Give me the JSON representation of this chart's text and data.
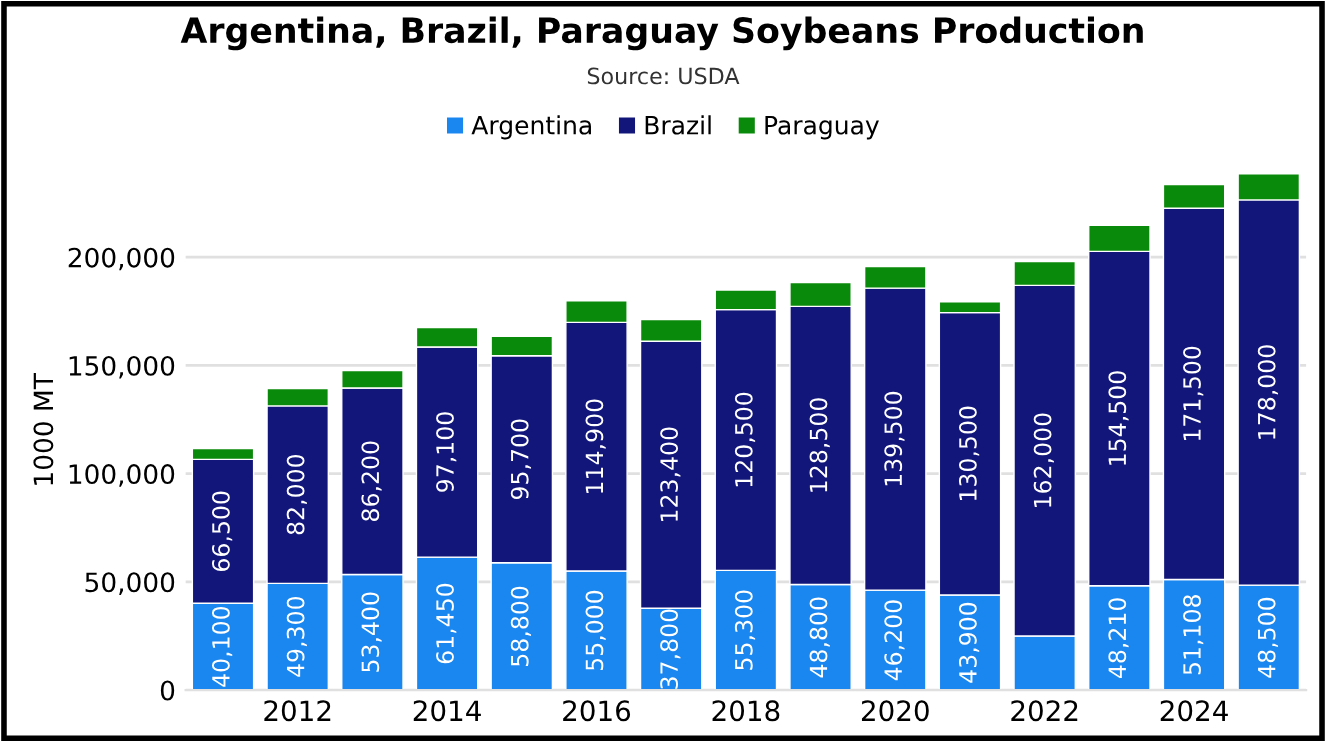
{
  "chart_data": {
    "type": "bar",
    "title": "Argentina, Brazil, Paraguay Soybeans Production",
    "subtitle": "Source: USDA",
    "ylabel": "1000 MT",
    "categories": [
      null,
      "2012",
      null,
      "2014",
      null,
      "2016",
      null,
      "2018",
      null,
      "2020",
      null,
      "2022",
      null,
      "2024",
      null
    ],
    "stacked": true,
    "series": [
      {
        "name": "Argentina",
        "color": "#1a86f0",
        "values": [
          40100,
          49300,
          53400,
          61450,
          58800,
          55000,
          37800,
          55300,
          48800,
          46200,
          43900,
          25000,
          48210,
          51108,
          48500
        ],
        "value_labels": [
          "40,100",
          "49,300",
          "53,400",
          "61,450",
          "58,800",
          "55,000",
          "37,800",
          "55,300",
          "48,800",
          "46,200",
          "43,900",
          null,
          "48,210",
          "51,108",
          "48,500"
        ]
      },
      {
        "name": "Brazil",
        "color": "#12167a",
        "values": [
          66500,
          82000,
          86200,
          97100,
          95700,
          114900,
          123400,
          120500,
          128500,
          139500,
          130500,
          162000,
          154500,
          171500,
          178000
        ],
        "value_labels": [
          "66,500",
          "82,000",
          "86,200",
          "97,100",
          "95,700",
          "114,900",
          "123,400",
          "120,500",
          "128,500",
          "139,500",
          "130,500",
          "162,000",
          "154,500",
          "171,500",
          "178,000"
        ]
      },
      {
        "name": "Paraguay",
        "color": "#0a8a0a",
        "values": [
          5000,
          8000,
          8000,
          9000,
          9000,
          10000,
          10000,
          9000,
          11000,
          10000,
          5000,
          11000,
          12000,
          11000,
          12000
        ]
      }
    ],
    "ylim": [
      0,
      240000
    ],
    "yticks": [
      {
        "value": 0,
        "label": "0"
      },
      {
        "value": 50000,
        "label": "50,000"
      },
      {
        "value": 100000,
        "label": "100,000"
      },
      {
        "value": 150000,
        "label": "150,000"
      },
      {
        "value": 200000,
        "label": "200,000"
      }
    ],
    "grid": "y",
    "legend": "top"
  }
}
